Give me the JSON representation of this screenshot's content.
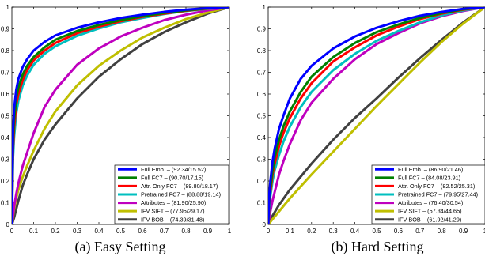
{
  "chart_data": [
    {
      "type": "line",
      "caption": "(a) Easy Setting",
      "xlim": [
        0,
        1
      ],
      "ylim": [
        0,
        1
      ],
      "xticks": [
        "0",
        "0.1",
        "0.2",
        "0.3",
        "0.4",
        "0.5",
        "0.6",
        "0.7",
        "0.8",
        "0.9",
        "1"
      ],
      "yticks": [
        "0",
        "0.1",
        "0.2",
        "0.3",
        "0.4",
        "0.5",
        "0.6",
        "0.7",
        "0.8",
        "0.9",
        "1"
      ],
      "grid": false,
      "legend_position": "bottom-right",
      "series": [
        {
          "name": "Full Emb. – (92.34/15.52)",
          "color": "#0000ff",
          "x": [
            0,
            0.005,
            0.01,
            0.02,
            0.03,
            0.05,
            0.07,
            0.1,
            0.15,
            0.2,
            0.3,
            0.4,
            0.5,
            0.6,
            0.7,
            0.8,
            0.9,
            1
          ],
          "y": [
            0,
            0.43,
            0.53,
            0.62,
            0.67,
            0.725,
            0.76,
            0.8,
            0.84,
            0.87,
            0.905,
            0.93,
            0.95,
            0.965,
            0.978,
            0.988,
            0.995,
            1
          ]
        },
        {
          "name": "Full FC7 – (90.70/17.15)",
          "color": "#008000",
          "x": [
            0,
            0.005,
            0.01,
            0.02,
            0.03,
            0.05,
            0.07,
            0.1,
            0.15,
            0.2,
            0.3,
            0.4,
            0.5,
            0.6,
            0.7,
            0.8,
            0.9,
            1
          ],
          "y": [
            0,
            0.38,
            0.48,
            0.58,
            0.63,
            0.69,
            0.73,
            0.77,
            0.815,
            0.85,
            0.89,
            0.918,
            0.94,
            0.958,
            0.973,
            0.985,
            0.994,
            1
          ]
        },
        {
          "name": "Attr. Only FC7 – (89.80/18.17)",
          "color": "#ff0000",
          "x": [
            0,
            0.005,
            0.01,
            0.02,
            0.03,
            0.05,
            0.07,
            0.1,
            0.15,
            0.2,
            0.3,
            0.4,
            0.5,
            0.6,
            0.7,
            0.8,
            0.9,
            1
          ],
          "y": [
            0,
            0.34,
            0.44,
            0.55,
            0.6,
            0.665,
            0.71,
            0.755,
            0.8,
            0.835,
            0.88,
            0.91,
            0.935,
            0.955,
            0.97,
            0.983,
            0.993,
            1
          ]
        },
        {
          "name": "Pretrained FC7 – (88.88/19.14)",
          "color": "#00bfbf",
          "x": [
            0,
            0.005,
            0.01,
            0.02,
            0.03,
            0.05,
            0.07,
            0.1,
            0.15,
            0.2,
            0.3,
            0.4,
            0.5,
            0.6,
            0.7,
            0.8,
            0.9,
            1
          ],
          "y": [
            0,
            0.3,
            0.4,
            0.51,
            0.57,
            0.64,
            0.685,
            0.735,
            0.785,
            0.82,
            0.868,
            0.902,
            0.93,
            0.95,
            0.968,
            0.982,
            0.992,
            1
          ]
        },
        {
          "name": "Attributes – (81.90/25.90)",
          "color": "#bf00bf",
          "x": [
            0,
            0.01,
            0.02,
            0.03,
            0.05,
            0.07,
            0.1,
            0.15,
            0.2,
            0.3,
            0.4,
            0.5,
            0.6,
            0.7,
            0.8,
            0.9,
            1
          ],
          "y": [
            0,
            0.08,
            0.14,
            0.19,
            0.27,
            0.33,
            0.42,
            0.54,
            0.62,
            0.735,
            0.81,
            0.865,
            0.905,
            0.94,
            0.965,
            0.985,
            1
          ]
        },
        {
          "name": "IFV SIFT – (77.95/29.17)",
          "color": "#bfbf00",
          "x": [
            0,
            0.01,
            0.02,
            0.03,
            0.05,
            0.07,
            0.1,
            0.15,
            0.2,
            0.3,
            0.4,
            0.5,
            0.6,
            0.7,
            0.8,
            0.9,
            1
          ],
          "y": [
            0,
            0.07,
            0.12,
            0.16,
            0.22,
            0.27,
            0.34,
            0.44,
            0.52,
            0.64,
            0.73,
            0.8,
            0.86,
            0.905,
            0.945,
            0.975,
            1
          ]
        },
        {
          "name": "IFV BOB – (74.39/31.48)",
          "color": "#404040",
          "x": [
            0,
            0.01,
            0.02,
            0.03,
            0.05,
            0.07,
            0.1,
            0.15,
            0.2,
            0.3,
            0.4,
            0.5,
            0.6,
            0.7,
            0.8,
            0.9,
            1
          ],
          "y": [
            0,
            0.03,
            0.07,
            0.11,
            0.18,
            0.23,
            0.3,
            0.39,
            0.46,
            0.58,
            0.68,
            0.76,
            0.83,
            0.885,
            0.93,
            0.97,
            1
          ]
        }
      ]
    },
    {
      "type": "line",
      "caption": "(b) Hard Setting",
      "xlim": [
        0,
        1
      ],
      "ylim": [
        0,
        1
      ],
      "xticks": [
        "0",
        "0.1",
        "0.2",
        "0.3",
        "0.4",
        "0.5",
        "0.6",
        "0.7",
        "0.8",
        "0.9",
        "1"
      ],
      "yticks": [
        "0",
        "0.1",
        "0.2",
        "0.3",
        "0.4",
        "0.5",
        "0.6",
        "0.7",
        "0.8",
        "0.9",
        "1"
      ],
      "grid": false,
      "legend_position": "bottom-right",
      "series": [
        {
          "name": "Full Emb. – (86.90/21.46)",
          "color": "#0000ff",
          "x": [
            0,
            0.005,
            0.01,
            0.02,
            0.03,
            0.05,
            0.07,
            0.1,
            0.15,
            0.2,
            0.3,
            0.4,
            0.5,
            0.6,
            0.7,
            0.8,
            0.9,
            1
          ],
          "y": [
            0,
            0.14,
            0.2,
            0.29,
            0.35,
            0.44,
            0.5,
            0.58,
            0.67,
            0.73,
            0.81,
            0.865,
            0.905,
            0.935,
            0.96,
            0.978,
            0.992,
            1
          ]
        },
        {
          "name": "Full FC7 – (84.08/23.91)",
          "color": "#008000",
          "x": [
            0,
            0.005,
            0.01,
            0.02,
            0.03,
            0.05,
            0.07,
            0.1,
            0.15,
            0.2,
            0.3,
            0.4,
            0.5,
            0.6,
            0.7,
            0.8,
            0.9,
            1
          ],
          "y": [
            0,
            0.12,
            0.17,
            0.25,
            0.31,
            0.39,
            0.45,
            0.52,
            0.61,
            0.68,
            0.77,
            0.835,
            0.885,
            0.92,
            0.95,
            0.973,
            0.99,
            1
          ]
        },
        {
          "name": "Attr. Only FC7 – (82.52/25.31)",
          "color": "#ff0000",
          "x": [
            0,
            0.005,
            0.01,
            0.02,
            0.03,
            0.05,
            0.07,
            0.1,
            0.15,
            0.2,
            0.3,
            0.4,
            0.5,
            0.6,
            0.7,
            0.8,
            0.9,
            1
          ],
          "y": [
            0,
            0.11,
            0.15,
            0.23,
            0.28,
            0.36,
            0.42,
            0.49,
            0.58,
            0.65,
            0.75,
            0.815,
            0.87,
            0.91,
            0.945,
            0.97,
            0.988,
            1
          ]
        },
        {
          "name": "Pretrained FC7 – (79.95/27.44)",
          "color": "#00bfbf",
          "x": [
            0,
            0.005,
            0.01,
            0.02,
            0.03,
            0.05,
            0.07,
            0.1,
            0.15,
            0.2,
            0.3,
            0.4,
            0.5,
            0.6,
            0.7,
            0.8,
            0.9,
            1
          ],
          "y": [
            0,
            0.09,
            0.13,
            0.2,
            0.25,
            0.32,
            0.38,
            0.45,
            0.54,
            0.61,
            0.71,
            0.785,
            0.845,
            0.89,
            0.93,
            0.962,
            0.985,
            1
          ]
        },
        {
          "name": "Attributes – (76.40/30.54)",
          "color": "#bf00bf",
          "x": [
            0,
            0.01,
            0.02,
            0.03,
            0.05,
            0.07,
            0.1,
            0.15,
            0.2,
            0.3,
            0.4,
            0.5,
            0.6,
            0.7,
            0.8,
            0.9,
            1
          ],
          "y": [
            0,
            0.06,
            0.11,
            0.15,
            0.23,
            0.29,
            0.37,
            0.48,
            0.56,
            0.67,
            0.76,
            0.83,
            0.88,
            0.925,
            0.958,
            0.982,
            1
          ]
        },
        {
          "name": "IFV SIFT – (57.34/44.65)",
          "color": "#bfbf00",
          "x": [
            0,
            0.05,
            0.1,
            0.2,
            0.3,
            0.4,
            0.5,
            0.6,
            0.7,
            0.8,
            0.9,
            1
          ],
          "y": [
            0,
            0.06,
            0.12,
            0.23,
            0.335,
            0.44,
            0.545,
            0.645,
            0.745,
            0.84,
            0.925,
            1
          ]
        },
        {
          "name": "IFV BOB – (61.92/41.29)",
          "color": "#404040",
          "x": [
            0,
            0.01,
            0.02,
            0.05,
            0.1,
            0.15,
            0.2,
            0.3,
            0.4,
            0.5,
            0.6,
            0.7,
            0.8,
            0.9,
            1
          ],
          "y": [
            0,
            0.02,
            0.04,
            0.09,
            0.16,
            0.22,
            0.28,
            0.39,
            0.49,
            0.58,
            0.675,
            0.765,
            0.85,
            0.93,
            1
          ]
        }
      ]
    }
  ]
}
